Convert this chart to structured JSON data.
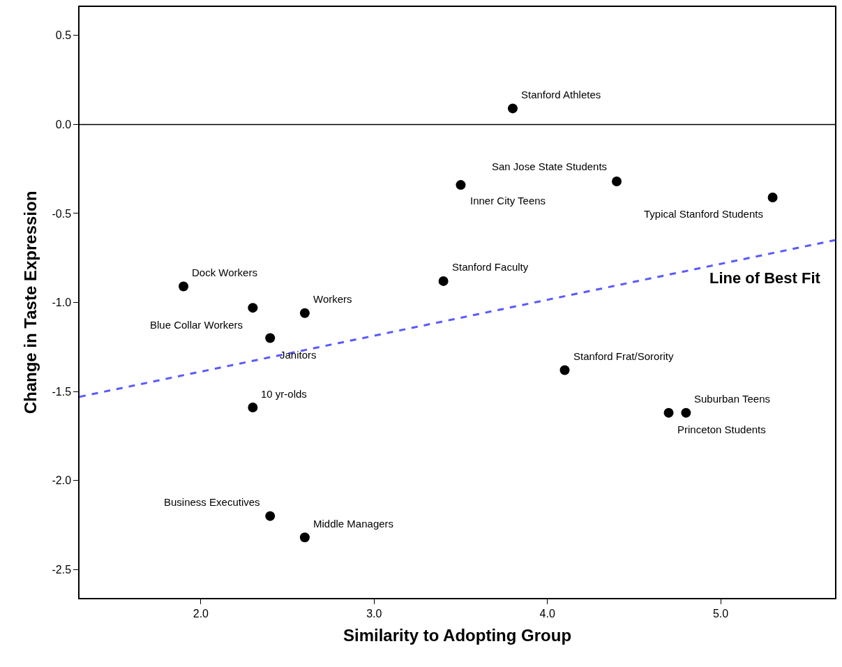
{
  "chart_data": {
    "type": "scatter",
    "xlabel": "Similarity to Adopting Group",
    "ylabel": "Change in Taste Expression",
    "xlim": [
      1.3,
      5.66
    ],
    "ylim": [
      -2.66,
      0.66
    ],
    "xticks": [
      {
        "value": 2,
        "label": "2.0"
      },
      {
        "value": 3,
        "label": "3.0"
      },
      {
        "value": 4,
        "label": "4.0"
      },
      {
        "value": 5,
        "label": "5.0"
      }
    ],
    "yticks": [
      {
        "value": -2.5,
        "label": "-2.5"
      },
      {
        "value": -2,
        "label": "-2.0"
      },
      {
        "value": -1.5,
        "label": "-1.5"
      },
      {
        "value": -1,
        "label": "-1.0"
      },
      {
        "value": -0.5,
        "label": "-0.5"
      },
      {
        "value": 0,
        "label": "0.0"
      },
      {
        "value": 0.5,
        "label": "0.5"
      }
    ],
    "legend": false,
    "marker": "circle",
    "series": [
      {
        "color": "#000000",
        "x": [
          3.8,
          4.4,
          3.5,
          5.3,
          3.4,
          1.9,
          2.3,
          2.6,
          2.4,
          2.3,
          4.1,
          4.8,
          4.7,
          2.4,
          2.6
        ],
        "values": [
          0.09,
          -0.32,
          -0.34,
          -0.41,
          -0.88,
          -0.91,
          -1.03,
          -1.06,
          -1.2,
          -1.59,
          -1.38,
          -1.62,
          -1.62,
          -2.2,
          -2.32
        ]
      },
      {
        "type": "line",
        "name": "Line of Best Fit",
        "color": "#5a5aff",
        "line_style": "dashed",
        "marker": "none",
        "x": [
          1.3,
          5.66
        ],
        "values": [
          -1.53,
          -0.65
        ]
      }
    ],
    "ref_lines": [
      {
        "axis": "y",
        "value": 0,
        "color": "#000000"
      }
    ],
    "annotations": [
      {
        "text": "Stanford Athletes",
        "x": 3.8,
        "y": 0.09
      },
      {
        "text": "San Jose State Students",
        "x": 4.4,
        "y": -0.32
      },
      {
        "text": "Inner City Teens",
        "x": 3.5,
        "y": -0.34
      },
      {
        "text": "Typical Stanford Students",
        "x": 5.3,
        "y": -0.41
      },
      {
        "text": "Stanford Faculty",
        "x": 3.4,
        "y": -0.88
      },
      {
        "text": "Dock Workers",
        "x": 1.9,
        "y": -0.91
      },
      {
        "text": "Blue Collar Workers",
        "x": 2.3,
        "y": -1.03
      },
      {
        "text": "Workers",
        "x": 2.6,
        "y": -1.06
      },
      {
        "text": "Janitors",
        "x": 2.4,
        "y": -1.2
      },
      {
        "text": "10 yr-olds",
        "x": 2.3,
        "y": -1.59
      },
      {
        "text": "Stanford Frat/Sorority",
        "x": 4.1,
        "y": -1.38
      },
      {
        "text": "Suburban Teens",
        "x": 4.8,
        "y": -1.62
      },
      {
        "text": "Princeton Students",
        "x": 4.7,
        "y": -1.62
      },
      {
        "text": "Business Executives",
        "x": 2.4,
        "y": -2.2
      },
      {
        "text": "Middle Managers",
        "x": 2.6,
        "y": -2.32
      }
    ]
  }
}
